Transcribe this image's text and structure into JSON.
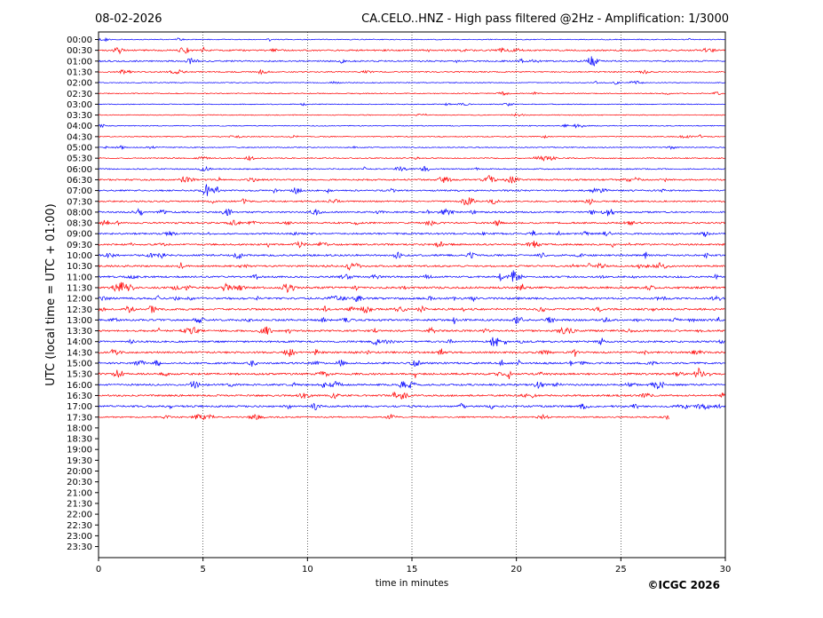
{
  "chart_data": {
    "type": "line",
    "date": "08-02-2026",
    "title": "CA.CELO..HNZ - High pass filtered @2Hz - Amplification: 1/3000",
    "xlabel": "time in minutes",
    "ylabel": "UTC (local time = UTC + 01:00)",
    "xlim": [
      0,
      30
    ],
    "x_ticks": [
      0,
      5,
      10,
      15,
      20,
      25,
      30
    ],
    "y_ticks": [
      "00:00",
      "00:30",
      "01:00",
      "01:30",
      "02:00",
      "02:30",
      "03:00",
      "03:30",
      "04:00",
      "04:30",
      "05:00",
      "05:30",
      "06:00",
      "06:30",
      "07:00",
      "07:30",
      "08:00",
      "08:30",
      "09:00",
      "09:30",
      "10:00",
      "10:30",
      "11:00",
      "11:30",
      "12:00",
      "12:30",
      "13:00",
      "13:30",
      "14:00",
      "14:30",
      "15:00",
      "15:30",
      "16:00",
      "16:30",
      "17:00",
      "17:30",
      "18:00",
      "18:30",
      "19:00",
      "19:30",
      "20:00",
      "20:30",
      "21:00",
      "21:30",
      "22:00",
      "22:30",
      "23:00",
      "23:30"
    ],
    "grid": "vertical dotted at 5-minute intervals",
    "series_colors": [
      "#0000ff",
      "#ff0000"
    ],
    "last_trace_end_minute": 27.3,
    "activity": [
      0.15,
      0.55,
      0.45,
      0.3,
      0.12,
      0.18,
      0.12,
      0.12,
      0.15,
      0.18,
      0.22,
      0.3,
      0.3,
      0.55,
      0.55,
      0.5,
      0.55,
      0.6,
      0.6,
      0.6,
      0.65,
      0.65,
      0.7,
      0.8,
      0.8,
      0.75,
      0.75,
      0.7,
      0.7,
      0.75,
      0.7,
      0.75,
      0.7,
      0.65,
      0.7,
      0.4
    ]
  },
  "copyright": "©ICGC 2026"
}
